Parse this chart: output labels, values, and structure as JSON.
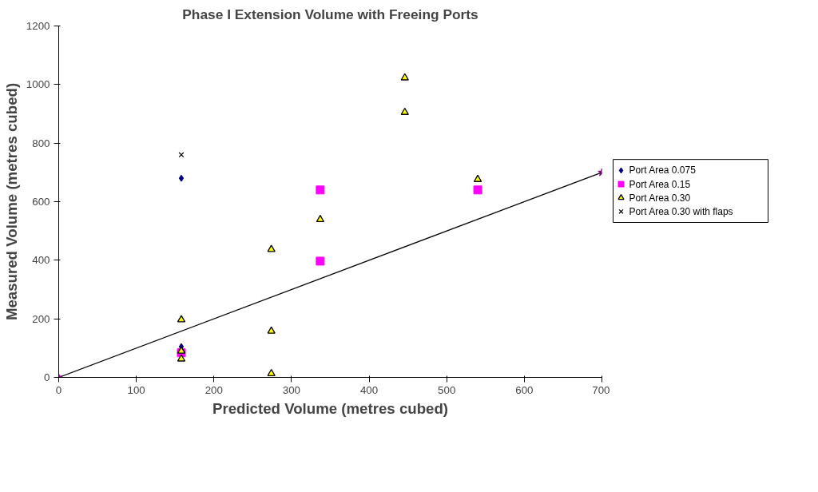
{
  "chart_data": {
    "type": "scatter",
    "title": "Phase I Extension Volume with Freeing Ports",
    "xlabel": "Predicted Volume (metres cubed)",
    "ylabel": "Measured Volume (metres cubed)",
    "xlim": [
      0,
      700
    ],
    "xticks": [
      0,
      100,
      200,
      300,
      400,
      500,
      600,
      700
    ],
    "ylim": [
      0,
      1200
    ],
    "yticks": [
      0,
      200,
      400,
      600,
      800,
      1000,
      1200
    ],
    "grid": false,
    "legend": "right",
    "series": [
      {
        "name": "Port Area 0.075",
        "color": "#000080",
        "marker": "diamond",
        "x": [
          158,
          158
        ],
        "values": [
          105,
          680
        ]
      },
      {
        "name": "Port Area 0.15",
        "color": "#ff00ff",
        "marker": "square",
        "x": [
          158,
          337,
          337,
          540
        ],
        "values": [
          84,
          640,
          397,
          640
        ]
      },
      {
        "name": "Port Area 0.30",
        "color": "#ffff00",
        "marker": "triangle",
        "x": [
          158,
          158,
          158,
          274,
          274,
          274,
          337,
          446,
          446,
          540
        ],
        "values": [
          197,
          90,
          63,
          437,
          158,
          13,
          539,
          1023,
          905,
          676
        ]
      },
      {
        "name": "Port Area 0.30 with flaps",
        "color": "#000000",
        "marker": "cross",
        "x": [
          158
        ],
        "values": [
          760
        ]
      },
      {
        "type": "line",
        "color": "#000000",
        "marker": "none",
        "x": [
          0,
          700
        ],
        "values": [
          0,
          700
        ]
      },
      {
        "color": "#800080",
        "marker": "star",
        "x": [
          0,
          700
        ],
        "values": [
          0,
          700
        ]
      }
    ]
  }
}
